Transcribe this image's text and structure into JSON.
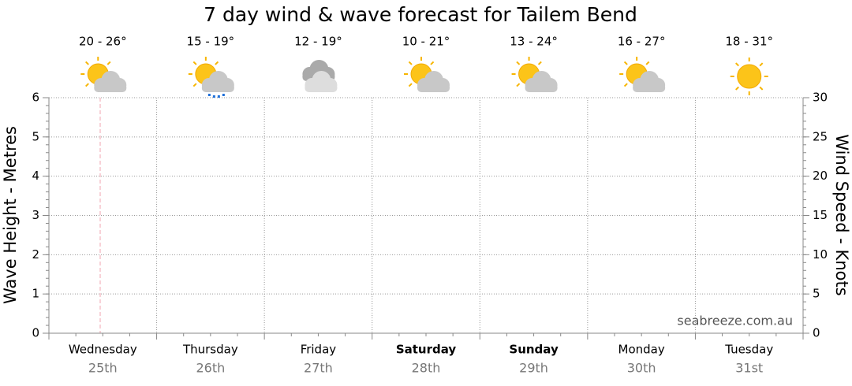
{
  "chart_data": {
    "type": "line",
    "title": "7 day wind & wave forecast for Tailem Bend",
    "ylabel": "Wave Height - Metres",
    "y2label": "Wind Speed - Knots",
    "categories": [
      "Wednesday",
      "Thursday",
      "Friday",
      "Saturday",
      "Sunday",
      "Monday",
      "Tuesday"
    ],
    "dates": [
      "25th",
      "26th",
      "27th",
      "28th",
      "29th",
      "30th",
      "31st"
    ],
    "temperatures": [
      "20 - 26°",
      "15 - 19°",
      "12 - 19°",
      "10 - 21°",
      "13 - 24°",
      "16 - 27°",
      "18 - 31°"
    ],
    "bold_categories": [
      3,
      4
    ],
    "ylim": [
      0,
      6
    ],
    "yticks": [
      0,
      1,
      2,
      3,
      4,
      5,
      6
    ],
    "y2lim": [
      0,
      30
    ],
    "y2ticks": [
      0,
      5,
      10,
      15,
      20,
      25,
      30
    ],
    "grid": true,
    "watermark": "seabreeze.com.au",
    "series": []
  }
}
